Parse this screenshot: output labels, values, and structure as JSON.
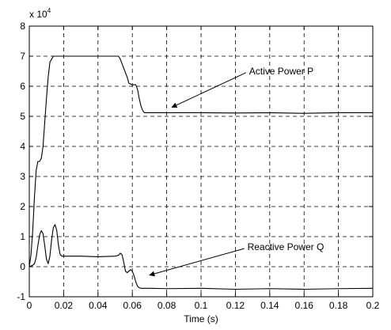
{
  "chart_data": {
    "type": "line",
    "title": "",
    "xlabel": "Time (s)",
    "ylabel": "",
    "scale_label": "x 10",
    "scale_exponent": "4",
    "xlim": [
      0,
      0.2
    ],
    "ylim": [
      -1,
      8
    ],
    "xticks": [
      0,
      0.02,
      0.04,
      0.06,
      0.08,
      0.1,
      0.12,
      0.14,
      0.16,
      0.18,
      0.2
    ],
    "xtick_labels": [
      "0",
      "0.02",
      "0.04",
      "0.06",
      "0.08",
      "0.1",
      "0.12",
      "0.14",
      "0.16",
      "0.18",
      "0.2"
    ],
    "yticks": [
      -1,
      0,
      1,
      2,
      3,
      4,
      5,
      6,
      7,
      8
    ],
    "ytick_labels": [
      "-1",
      "0",
      "1",
      "2",
      "3",
      "4",
      "5",
      "6",
      "7",
      "8"
    ],
    "grid": true,
    "series": [
      {
        "name": "Active Power P",
        "color": "#000000",
        "x": [
          0,
          0.001,
          0.002,
          0.003,
          0.004,
          0.005,
          0.006,
          0.007,
          0.008,
          0.009,
          0.01,
          0.011,
          0.012,
          0.013,
          0.014,
          0.015,
          0.016,
          0.017,
          0.018,
          0.02,
          0.03,
          0.04,
          0.05,
          0.052,
          0.053,
          0.055,
          0.057,
          0.058,
          0.06,
          0.062,
          0.063,
          0.064,
          0.065,
          0.066,
          0.067,
          0.068,
          0.07,
          0.08,
          0.1,
          0.12,
          0.14,
          0.16,
          0.18,
          0.2
        ],
        "y": [
          0,
          0.4,
          1.2,
          2.3,
          3.2,
          3.5,
          3.5,
          3.6,
          4.0,
          4.8,
          5.6,
          6.3,
          6.8,
          6.9,
          7.0,
          7.0,
          7.0,
          7.0,
          7.0,
          7.0,
          7.0,
          7.0,
          7.0,
          7.0,
          6.9,
          6.6,
          6.3,
          6.1,
          6.05,
          6.05,
          5.9,
          5.6,
          5.35,
          5.2,
          5.12,
          5.12,
          5.12,
          5.12,
          5.12,
          5.11,
          5.12,
          5.1,
          5.12,
          5.12
        ]
      },
      {
        "name": "Reactive Power Q",
        "color": "#000000",
        "x": [
          0,
          0.002,
          0.003,
          0.004,
          0.005,
          0.006,
          0.007,
          0.008,
          0.009,
          0.01,
          0.011,
          0.012,
          0.013,
          0.014,
          0.015,
          0.016,
          0.017,
          0.018,
          0.019,
          0.02,
          0.03,
          0.04,
          0.05,
          0.052,
          0.053,
          0.054,
          0.055,
          0.056,
          0.057,
          0.058,
          0.059,
          0.06,
          0.061,
          0.062,
          0.063,
          0.064,
          0.065,
          0.066,
          0.067,
          0.07,
          0.08,
          0.1,
          0.12,
          0.14,
          0.16,
          0.18,
          0.2
        ],
        "y": [
          0,
          0.05,
          0.1,
          0.3,
          0.7,
          1.05,
          1.2,
          1.1,
          0.7,
          0.25,
          0.1,
          0.35,
          0.9,
          1.3,
          1.4,
          1.2,
          0.7,
          0.4,
          0.35,
          0.35,
          0.35,
          0.33,
          0.35,
          0.38,
          0.45,
          0.4,
          0.15,
          -0.15,
          -0.2,
          -0.15,
          -0.1,
          -0.15,
          -0.3,
          -0.5,
          -0.65,
          -0.7,
          -0.72,
          -0.72,
          -0.72,
          -0.72,
          -0.73,
          -0.72,
          -0.75,
          -0.73,
          -0.75,
          -0.73,
          -0.72
        ]
      }
    ],
    "annotations": [
      {
        "text": "Active Power P",
        "text_x": 0.128,
        "text_y": 6.4,
        "arrow_to_x": 0.083,
        "arrow_to_y": 5.3
      },
      {
        "text": "Reactive Power Q",
        "text_x": 0.127,
        "text_y": 0.55,
        "arrow_to_x": 0.07,
        "arrow_to_y": -0.28
      }
    ]
  }
}
